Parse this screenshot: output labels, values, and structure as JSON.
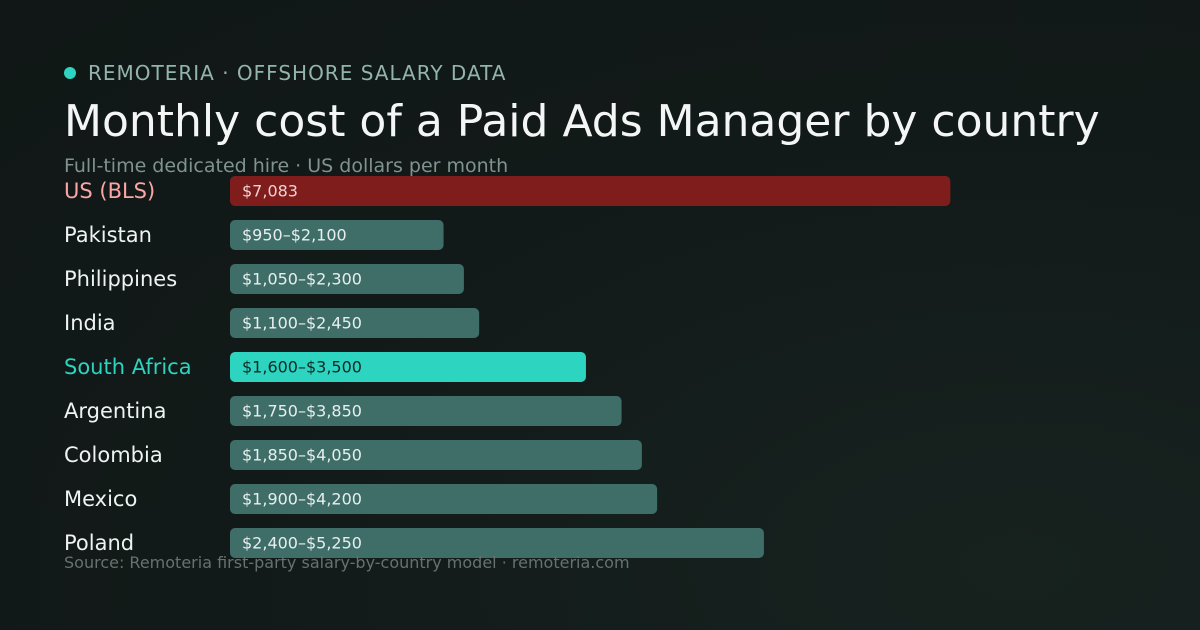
{
  "header": {
    "brand": "REMOTERIA · OFFSHORE SALARY DATA",
    "title": "Monthly cost of a Paid Ads Manager by country",
    "subtitle": "Full-time dedicated hire · US dollars per month"
  },
  "footer": {
    "source": "Source: Remoteria first-party salary-by-country model · remoteria.com"
  },
  "colors": {
    "accent": "#2dd4bf",
    "us_bar": "#7f1d1d",
    "us_label": "#fca5a5",
    "default_bar": "#3f6e69",
    "highlight_bar": "#2dd4bf",
    "highlight_label": "#2dd4bf"
  },
  "chart_data": {
    "type": "bar",
    "orientation": "horizontal",
    "unit": "USD per month",
    "xlim": [
      0,
      7500
    ],
    "grid": false,
    "rows": [
      {
        "category": "US (BLS)",
        "low": 0,
        "high": 7083,
        "label": "$7,083",
        "style": "us"
      },
      {
        "category": "Pakistan",
        "low": 950,
        "high": 2100,
        "label": "$950–$2,100",
        "style": "default"
      },
      {
        "category": "Philippines",
        "low": 1050,
        "high": 2300,
        "label": "$1,050–$2,300",
        "style": "default"
      },
      {
        "category": "India",
        "low": 1100,
        "high": 2450,
        "label": "$1,100–$2,450",
        "style": "default"
      },
      {
        "category": "South Africa",
        "low": 1600,
        "high": 3500,
        "label": "$1,600–$3,500",
        "style": "highlight"
      },
      {
        "category": "Argentina",
        "low": 1750,
        "high": 3850,
        "label": "$1,750–$3,850",
        "style": "default"
      },
      {
        "category": "Colombia",
        "low": 1850,
        "high": 4050,
        "label": "$1,850–$4,050",
        "style": "default"
      },
      {
        "category": "Mexico",
        "low": 1900,
        "high": 4200,
        "label": "$1,900–$4,200",
        "style": "default"
      },
      {
        "category": "Poland",
        "low": 2400,
        "high": 5250,
        "label": "$2,400–$5,250",
        "style": "default"
      }
    ]
  }
}
